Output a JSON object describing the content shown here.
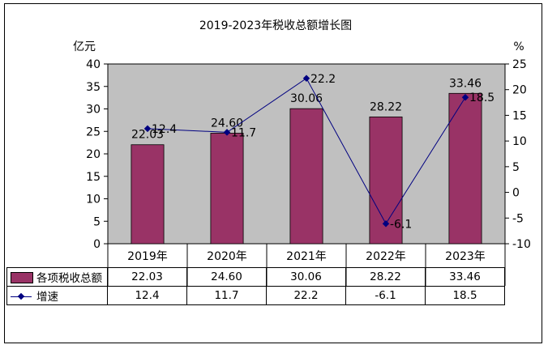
{
  "chart_data": {
    "type": "bar",
    "title": "2019-2023年税收总额增长图",
    "categories": [
      "2019年",
      "2020年",
      "2021年",
      "2022年",
      "2023年"
    ],
    "y_left_unit": "亿元",
    "y_right_unit": "%",
    "ylim_left": [
      0,
      40
    ],
    "ylim_right": [
      -10,
      25
    ],
    "y_left_ticks": [
      "0",
      "5",
      "10",
      "15",
      "20",
      "25",
      "30",
      "35",
      "40"
    ],
    "y_right_ticks": [
      "-10",
      "-5",
      "0",
      "5",
      "10",
      "15",
      "20",
      "25"
    ],
    "grid": false,
    "plot_background": "#C0C0C0",
    "series": [
      {
        "name": "各项税收总额",
        "type": "bar",
        "axis": "left",
        "color": "#993366",
        "values": [
          22.03,
          24.6,
          30.06,
          28.22,
          33.46
        ],
        "labels": [
          "22.03",
          "24.60",
          "30.06",
          "28.22",
          "33.46"
        ]
      },
      {
        "name": "增速",
        "type": "line",
        "axis": "right",
        "color": "#000080",
        "values": [
          12.4,
          11.7,
          22.2,
          -6.1,
          18.5
        ],
        "labels": [
          "12.4",
          "11.7",
          "22.2",
          "-6.1",
          "18.5"
        ]
      }
    ]
  }
}
